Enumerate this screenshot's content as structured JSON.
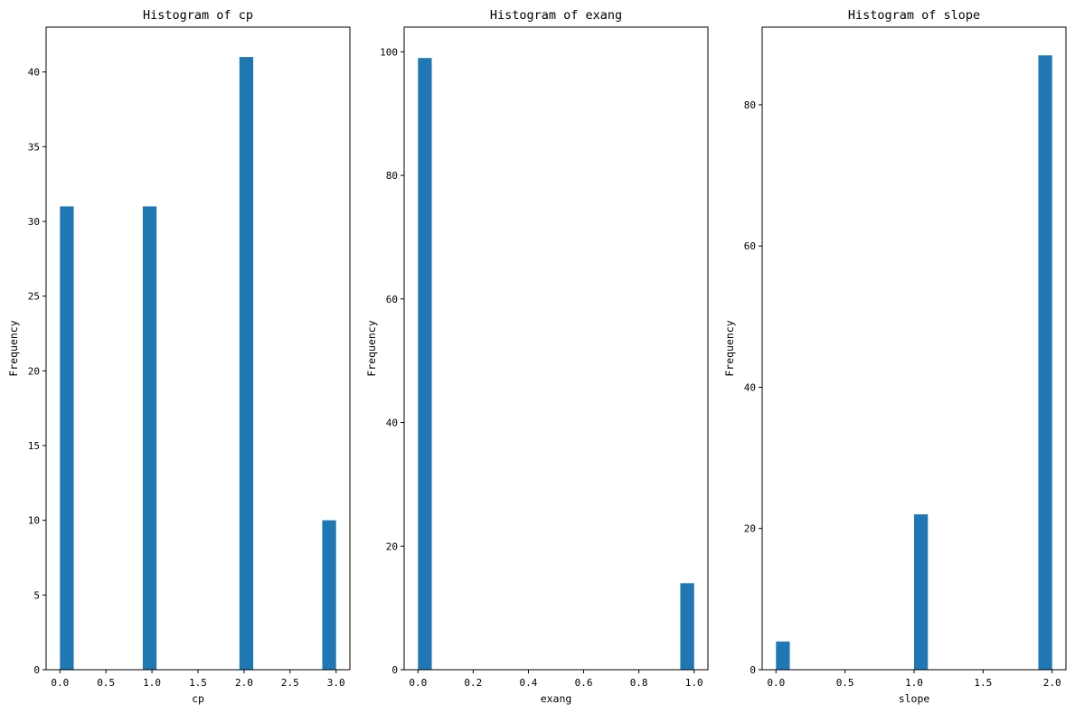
{
  "figure": {
    "background": "#ffffff",
    "bar_color": "#1f77b4"
  },
  "chart_data": [
    {
      "type": "bar",
      "title": "Histogram of cp",
      "xlabel": "cp",
      "ylabel": "Frequency",
      "xlim": [
        -0.15,
        3.15
      ],
      "ylim": [
        0,
        43
      ],
      "xticks": [
        0.0,
        0.5,
        1.0,
        1.5,
        2.0,
        2.5,
        3.0
      ],
      "xtick_labels": [
        "0.0",
        "0.5",
        "1.0",
        "1.5",
        "2.0",
        "2.5",
        "3.0"
      ],
      "yticks": [
        0,
        5,
        10,
        15,
        20,
        25,
        30,
        35,
        40
      ],
      "ytick_labels": [
        "0",
        "5",
        "10",
        "15",
        "20",
        "25",
        "30",
        "35",
        "40"
      ],
      "bin_width": 0.15,
      "bins": [
        {
          "x0": 0.0,
          "count": 31
        },
        {
          "x0": 0.9,
          "count": 31
        },
        {
          "x0": 1.95,
          "count": 41
        },
        {
          "x0": 2.85,
          "count": 10
        }
      ],
      "grid": false
    },
    {
      "type": "bar",
      "title": "Histogram of exang",
      "xlabel": "exang",
      "ylabel": "Frequency",
      "xlim": [
        -0.05,
        1.05
      ],
      "ylim": [
        0,
        104
      ],
      "xticks": [
        0.0,
        0.2,
        0.4,
        0.6,
        0.8,
        1.0
      ],
      "xtick_labels": [
        "0.0",
        "0.2",
        "0.4",
        "0.6",
        "0.8",
        "1.0"
      ],
      "yticks": [
        0,
        20,
        40,
        60,
        80,
        100
      ],
      "ytick_labels": [
        "0",
        "20",
        "40",
        "60",
        "80",
        "100"
      ],
      "bin_width": 0.05,
      "bins": [
        {
          "x0": 0.0,
          "count": 99
        },
        {
          "x0": 0.95,
          "count": 14
        }
      ],
      "grid": false
    },
    {
      "type": "bar",
      "title": "Histogram of slope",
      "xlabel": "slope",
      "ylabel": "Frequency",
      "xlim": [
        -0.1,
        2.1
      ],
      "ylim": [
        0,
        91
      ],
      "xticks": [
        0.0,
        0.5,
        1.0,
        1.5,
        2.0
      ],
      "xtick_labels": [
        "0.0",
        "0.5",
        "1.0",
        "1.5",
        "2.0"
      ],
      "yticks": [
        0,
        20,
        40,
        60,
        80
      ],
      "ytick_labels": [
        "0",
        "20",
        "40",
        "60",
        "80"
      ],
      "bin_width": 0.1,
      "bins": [
        {
          "x0": 0.0,
          "count": 4
        },
        {
          "x0": 1.0,
          "count": 22
        },
        {
          "x0": 1.9,
          "count": 87
        }
      ],
      "grid": false
    }
  ]
}
